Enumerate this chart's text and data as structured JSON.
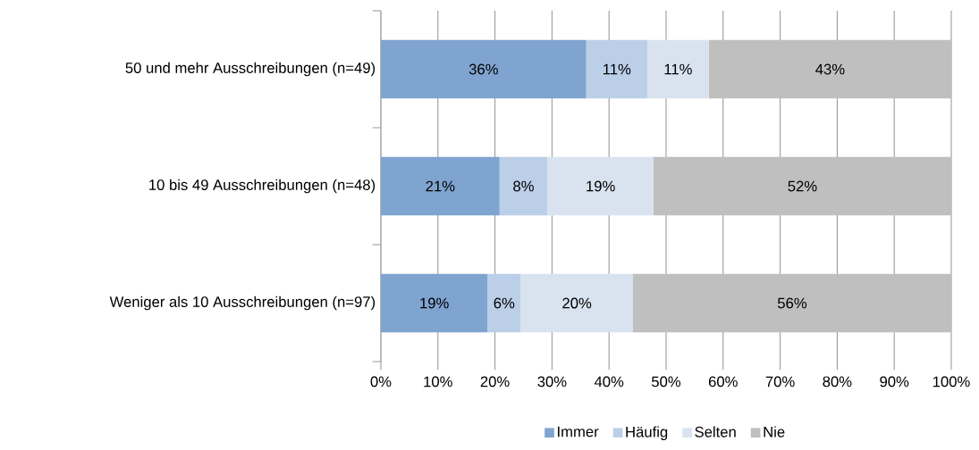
{
  "chart_data": {
    "type": "bar",
    "orientation": "horizontal",
    "stacked": true,
    "categories": [
      "50 und mehr Ausschreibungen (n=49)",
      "10 bis 49 Ausschreibungen (n=48)",
      "Weniger als 10 Ausschreibungen (n=97)"
    ],
    "series": [
      {
        "name": "Immer",
        "color": "#7fa4d0",
        "values": [
          36.0,
          20.8,
          18.7
        ],
        "value_labels": [
          "36%",
          "21%",
          "19%"
        ]
      },
      {
        "name": "Häufig",
        "color": "#bbcfe8",
        "values": [
          10.7,
          8.4,
          5.8
        ],
        "value_labels": [
          "11%",
          "8%",
          "6%"
        ]
      },
      {
        "name": "Selten",
        "color": "#d9e3f0",
        "values": [
          10.8,
          18.6,
          19.7
        ],
        "value_labels": [
          "11%",
          "19%",
          "20%"
        ]
      },
      {
        "name": "Nie",
        "color": "#bfbfbf",
        "values": [
          42.5,
          52.2,
          55.8
        ],
        "value_labels": [
          "43%",
          "52%",
          "56%"
        ]
      }
    ],
    "xlim": [
      0,
      100
    ],
    "xticks": [
      {
        "value": 0,
        "label": "0%"
      },
      {
        "value": 10,
        "label": "10%"
      },
      {
        "value": 20,
        "label": "20%"
      },
      {
        "value": 30,
        "label": "30%"
      },
      {
        "value": 40,
        "label": "40%"
      },
      {
        "value": 50,
        "label": "50%"
      },
      {
        "value": 60,
        "label": "60%"
      },
      {
        "value": 70,
        "label": "70%"
      },
      {
        "value": 80,
        "label": "80%"
      },
      {
        "value": 90,
        "label": "90%"
      },
      {
        "value": 100,
        "label": "100%"
      }
    ],
    "grid": "x",
    "legend": "bottom"
  }
}
